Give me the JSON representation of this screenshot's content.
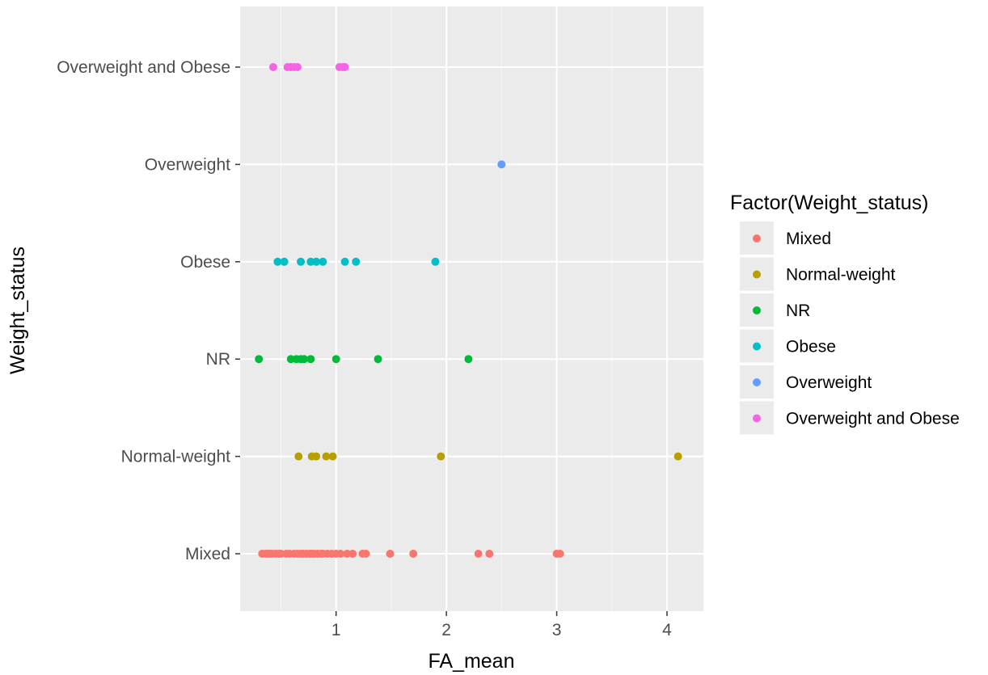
{
  "chart_data": {
    "type": "scatter",
    "title": "",
    "xlabel": "FA_mean",
    "ylabel": "Weight_status",
    "xlim": [
      0.13,
      4.33
    ],
    "x_ticks": [
      1,
      2,
      3,
      4
    ],
    "x_tick_labels": [
      "1",
      "2",
      "3",
      "4"
    ],
    "categories": [
      "Mixed",
      "Normal-weight",
      "NR",
      "Obese",
      "Overweight",
      "Overweight and Obese"
    ],
    "grid": true,
    "legend": {
      "title": "Factor(Weight_status)",
      "position": "right"
    },
    "series": [
      {
        "name": "Mixed",
        "color": "#F8766D",
        "x": [
          0.33,
          0.36,
          0.38,
          0.4,
          0.42,
          0.45,
          0.48,
          0.5,
          0.55,
          0.58,
          0.62,
          0.65,
          0.68,
          0.7,
          0.73,
          0.76,
          0.78,
          0.8,
          0.83,
          0.86,
          0.88,
          0.92,
          0.96,
          1.0,
          1.04,
          1.1,
          1.15,
          1.24,
          1.27,
          1.49,
          1.7,
          2.29,
          2.39,
          3.0,
          3.03
        ]
      },
      {
        "name": "Normal-weight",
        "color": "#B79F00",
        "x": [
          0.66,
          0.78,
          0.82,
          0.91,
          0.97,
          1.95,
          4.1
        ]
      },
      {
        "name": "NR",
        "color": "#00BA38",
        "x": [
          0.3,
          0.59,
          0.64,
          0.68,
          0.71,
          0.77,
          1.0,
          1.38,
          2.2
        ]
      },
      {
        "name": "Obese",
        "color": "#00BFC4",
        "x": [
          0.47,
          0.53,
          0.68,
          0.77,
          0.82,
          0.88,
          1.08,
          1.18,
          1.9
        ]
      },
      {
        "name": "Overweight",
        "color": "#619CFF",
        "x": [
          2.5
        ]
      },
      {
        "name": "Overweight and Obese",
        "color": "#F564E3",
        "x": [
          0.43,
          0.56,
          0.59,
          0.62,
          0.65,
          1.03,
          1.06,
          1.08
        ]
      }
    ]
  }
}
